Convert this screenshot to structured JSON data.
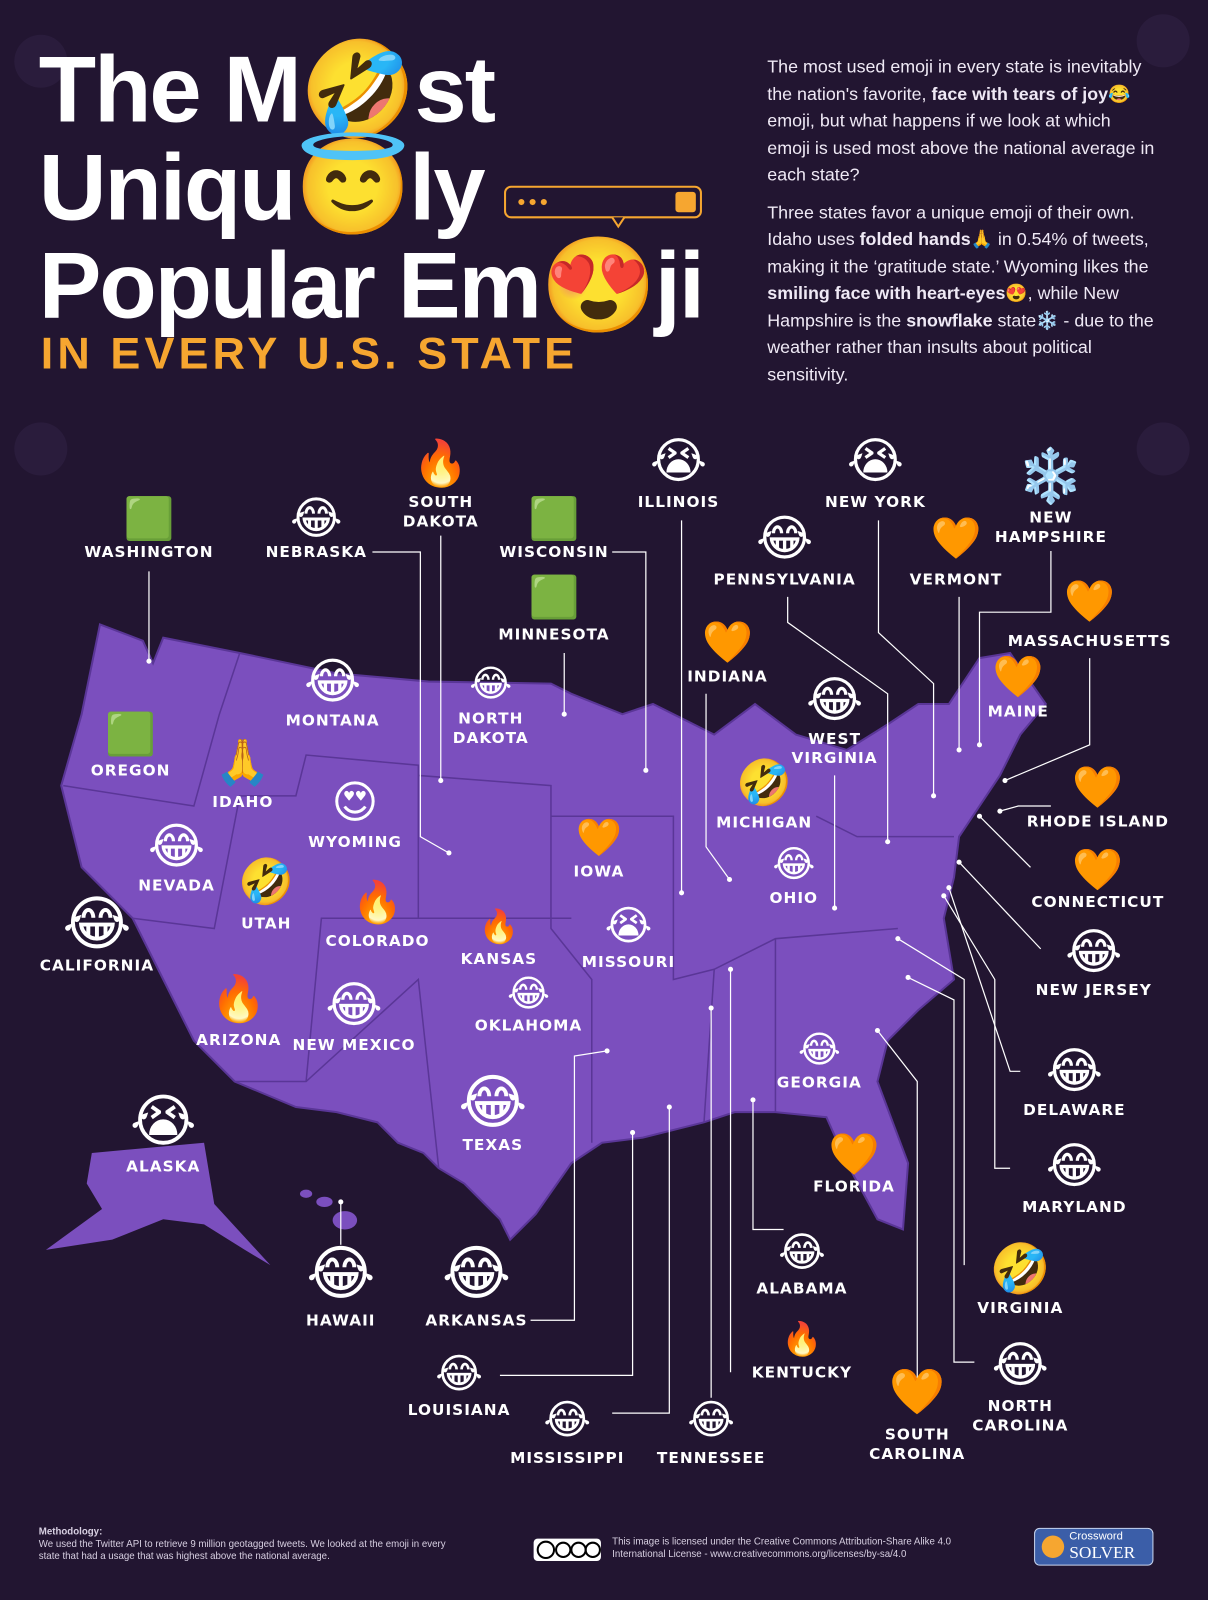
{
  "header": {
    "title_lines": [
      "The M🤣st",
      "Uniqu😇ly",
      "Popular Em😍ji"
    ],
    "subtitle": "IN EVERY U.S. STATE"
  },
  "intro": {
    "paragraphs": [
      [
        {
          "text": "The most used emoji in every state is inevitably the nation's favorite, "
        },
        {
          "text": "face with tears of joy",
          "bold": true
        },
        {
          "text": "😂 emoji, but what happens if we look at which emoji is used most above the national average in each state?"
        }
      ],
      [
        {
          "text": "Three states favor a unique emoji of their own. Idaho uses "
        },
        {
          "text": "folded hands",
          "bold": true
        },
        {
          "text": "🙏 in 0.54% of tweets, making it the ‘gratitude state.’ Wyoming likes the "
        },
        {
          "text": "smiling face with heart-eyes",
          "bold": true
        },
        {
          "text": "😍, while New Hampshire is the "
        },
        {
          "text": "snowflake",
          "bold": true
        },
        {
          "text": " state❄️ - due to the weather rather than insults about political sensitivity."
        }
      ]
    ]
  },
  "states": [
    {
      "name": "WASHINGTON",
      "emoji": "🟩"
    },
    {
      "name": "NEBRASKA",
      "emoji": "😂"
    },
    {
      "name": "SOUTH DAKOTA",
      "emoji": "🔥"
    },
    {
      "name": "WISCONSIN",
      "emoji": "🟩"
    },
    {
      "name": "ILLINOIS",
      "emoji": "😭"
    },
    {
      "name": "NEW YORK",
      "emoji": "😭"
    },
    {
      "name": "NEW HAMPSHIRE",
      "emoji": "❄️"
    },
    {
      "name": "PENNSYLVANIA",
      "emoji": "😂"
    },
    {
      "name": "VERMONT",
      "emoji": "🧡"
    },
    {
      "name": "MINNESOTA",
      "emoji": "🟩"
    },
    {
      "name": "MASSACHUSETTS",
      "emoji": "🧡"
    },
    {
      "name": "INDIANA",
      "emoji": "🧡"
    },
    {
      "name": "MAINE",
      "emoji": "🧡"
    },
    {
      "name": "MONTANA",
      "emoji": "😂"
    },
    {
      "name": "NORTH DAKOTA",
      "emoji": "😂"
    },
    {
      "name": "WEST VIRGINIA",
      "emoji": "😂"
    },
    {
      "name": "OREGON",
      "emoji": "🟩"
    },
    {
      "name": "IDAHO",
      "emoji": "🙏"
    },
    {
      "name": "WYOMING",
      "emoji": "😍"
    },
    {
      "name": "MICHIGAN",
      "emoji": "🤣"
    },
    {
      "name": "RHODE ISLAND",
      "emoji": "🧡"
    },
    {
      "name": "NEVADA",
      "emoji": "😂"
    },
    {
      "name": "IOWA",
      "emoji": "🧡"
    },
    {
      "name": "OHIO",
      "emoji": "😂"
    },
    {
      "name": "CONNECTICUT",
      "emoji": "🧡"
    },
    {
      "name": "UTAH",
      "emoji": "🤣"
    },
    {
      "name": "COLORADO",
      "emoji": "🔥"
    },
    {
      "name": "KANSAS",
      "emoji": "🔥"
    },
    {
      "name": "MISSOURI",
      "emoji": "😭"
    },
    {
      "name": "CALIFORNIA",
      "emoji": "😂"
    },
    {
      "name": "NEW JERSEY",
      "emoji": "😂"
    },
    {
      "name": "OKLAHOMA",
      "emoji": "😂"
    },
    {
      "name": "ARIZONA",
      "emoji": "🔥"
    },
    {
      "name": "NEW MEXICO",
      "emoji": "😂"
    },
    {
      "name": "DELAWARE",
      "emoji": "😂"
    },
    {
      "name": "GEORGIA",
      "emoji": "😂"
    },
    {
      "name": "TEXAS",
      "emoji": "😂"
    },
    {
      "name": "ALASKA",
      "emoji": "😭"
    },
    {
      "name": "MARYLAND",
      "emoji": "😂"
    },
    {
      "name": "FLORIDA",
      "emoji": "🧡"
    },
    {
      "name": "ALABAMA",
      "emoji": "😂"
    },
    {
      "name": "HAWAII",
      "emoji": "😂"
    },
    {
      "name": "ARKANSAS",
      "emoji": "😂"
    },
    {
      "name": "VIRGINIA",
      "emoji": "🤣"
    },
    {
      "name": "KENTUCKY",
      "emoji": "🔥"
    },
    {
      "name": "LOUISIANA",
      "emoji": "😂"
    },
    {
      "name": "NORTH CAROLINA",
      "emoji": "😂"
    },
    {
      "name": "SOUTH CAROLINA",
      "emoji": "🧡"
    },
    {
      "name": "MISSISSIPPI",
      "emoji": "😂"
    },
    {
      "name": "TENNESSEE",
      "emoji": "😂"
    }
  ],
  "footer": {
    "methodology_title": "Methodology:",
    "methodology_text": "We used the Twitter API to retrieve 9 million geotagged tweets. We looked at the emoji in every state that had a usage that was highest above the national average.",
    "license_text": "This image is licensed under the Creative Commons Attribution-Share Alike 4.0 International License - www.creativecommons.org/licenses/by-sa/4.0",
    "logo_top": "Crossword",
    "logo_bottom": "SOLVER"
  }
}
